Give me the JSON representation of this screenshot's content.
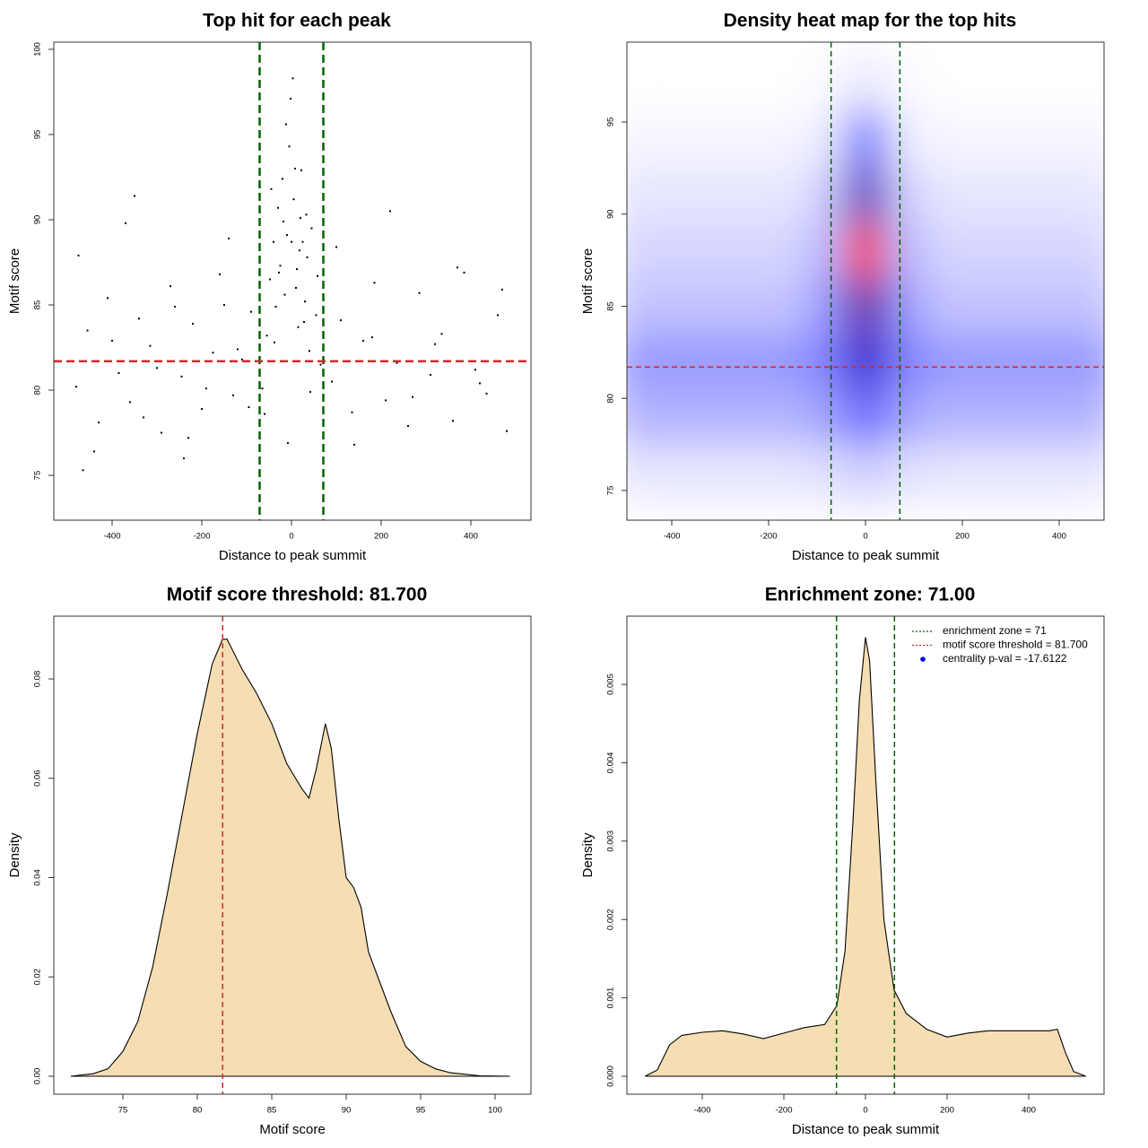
{
  "chart_data": [
    {
      "type": "scatter",
      "title": "Top hit for each peak",
      "xlabel": "Distance to peak summit",
      "ylabel": "Motif score",
      "color": "#000000",
      "x": [
        -480,
        -455,
        -430,
        -410,
        -385,
        -360,
        -340,
        -315,
        -290,
        -270,
        -245,
        -220,
        -200,
        -175,
        -150,
        -130,
        -110,
        -90,
        -475,
        -440,
        -400,
        -370,
        -330,
        -300,
        -260,
        -230,
        -190,
        -160,
        -120,
        -95,
        90,
        110,
        135,
        160,
        185,
        210,
        235,
        260,
        285,
        310,
        335,
        360,
        385,
        410,
        435,
        460,
        480,
        100,
        140,
        180,
        220,
        270,
        320,
        370,
        420,
        470,
        -465,
        -350,
        -240,
        -140,
        -65,
        -55,
        -48,
        -40,
        -35,
        -30,
        -25,
        -20,
        -15,
        -10,
        -5,
        0,
        5,
        10,
        15,
        20,
        25,
        30,
        35,
        40,
        45,
        55,
        65,
        -60,
        -45,
        -28,
        -12,
        -2,
        8,
        18,
        28,
        42,
        58,
        -38,
        -18,
        3,
        12,
        22,
        -8,
        33
      ],
      "y": [
        80.2,
        83.5,
        78.1,
        85.4,
        81.0,
        79.3,
        84.2,
        82.6,
        77.5,
        86.1,
        80.8,
        83.9,
        78.9,
        82.2,
        85.0,
        79.7,
        81.8,
        84.6,
        87.9,
        76.4,
        82.9,
        89.8,
        78.4,
        81.3,
        84.9,
        77.2,
        80.1,
        86.8,
        82.4,
        79.0,
        80.5,
        84.1,
        78.7,
        82.9,
        86.3,
        79.4,
        81.6,
        77.9,
        85.7,
        80.9,
        83.3,
        78.2,
        86.9,
        81.2,
        79.8,
        84.4,
        77.6,
        88.4,
        76.8,
        83.1,
        90.5,
        79.6,
        82.7,
        87.2,
        80.4,
        85.9,
        75.3,
        91.4,
        76.0,
        88.9,
        80.1,
        83.2,
        86.5,
        88.7,
        84.9,
        90.7,
        87.3,
        92.4,
        85.6,
        89.1,
        94.3,
        88.7,
        91.2,
        86.0,
        83.7,
        90.1,
        88.7,
        85.2,
        87.8,
        82.3,
        89.5,
        84.4,
        81.5,
        78.6,
        91.8,
        86.9,
        95.6,
        97.1,
        93.0,
        88.2,
        84.0,
        79.9,
        86.7,
        82.8,
        89.9,
        98.3,
        87.1,
        92.9,
        76.9,
        90.3
      ],
      "xlim": [
        -530,
        534
      ],
      "ylim": [
        72.37,
        100.42
      ],
      "xticks": [
        -400,
        -200,
        0,
        200,
        400
      ],
      "yticks": [
        75,
        80,
        85,
        90,
        95,
        100
      ],
      "vlines": [
        -71,
        71
      ],
      "vline_color": "#006400",
      "hlines": [
        81.7
      ],
      "hline_color": "#d62728"
    },
    {
      "type": "heatmap",
      "title": "Density heat map for the top hits",
      "xlabel": "Distance to peak summit",
      "ylabel": "Motif score",
      "x": [
        -480,
        -400,
        -320,
        -240,
        -160,
        -80,
        0,
        80,
        160,
        240,
        320,
        400,
        480
      ],
      "y": [
        97,
        94,
        91,
        88,
        85,
        82,
        79,
        76
      ],
      "z": [
        [
          0,
          0,
          0,
          0,
          0,
          0.01,
          0.05,
          0.01,
          0,
          0,
          0,
          0,
          0
        ],
        [
          0.02,
          0.02,
          0.02,
          0.02,
          0.02,
          0.04,
          0.3,
          0.04,
          0.02,
          0.02,
          0.02,
          0.02,
          0.02
        ],
        [
          0.05,
          0.05,
          0.05,
          0.05,
          0.05,
          0.1,
          0.65,
          0.1,
          0.05,
          0.05,
          0.05,
          0.05,
          0.05
        ],
        [
          0.08,
          0.08,
          0.08,
          0.08,
          0.08,
          0.15,
          1.0,
          0.15,
          0.08,
          0.08,
          0.08,
          0.08,
          0.08
        ],
        [
          0.12,
          0.12,
          0.12,
          0.12,
          0.12,
          0.2,
          0.7,
          0.2,
          0.12,
          0.12,
          0.12,
          0.12,
          0.12
        ],
        [
          0.2,
          0.2,
          0.2,
          0.2,
          0.2,
          0.25,
          0.6,
          0.25,
          0.2,
          0.2,
          0.2,
          0.2,
          0.2
        ],
        [
          0.15,
          0.15,
          0.15,
          0.15,
          0.15,
          0.18,
          0.3,
          0.18,
          0.15,
          0.15,
          0.15,
          0.15,
          0.15
        ],
        [
          0.05,
          0.05,
          0.05,
          0.05,
          0.05,
          0.06,
          0.1,
          0.06,
          0.05,
          0.05,
          0.05,
          0.05,
          0.05
        ]
      ],
      "colorscale": [
        "#ffffff",
        "#0000ff",
        "#ff0000"
      ],
      "xlim": [
        -492.6,
        492.6
      ],
      "ylim": [
        73.39,
        99.33
      ],
      "xticks": [
        -400,
        -200,
        0,
        200,
        400
      ],
      "yticks": [
        75,
        80,
        85,
        90,
        95
      ],
      "vlines": [
        -71,
        71
      ],
      "vline_color": "#006400",
      "hlines": [
        81.7
      ],
      "hline_color": "#d62728"
    },
    {
      "type": "density",
      "title": "Motif score threshold: 81.700",
      "xlabel": "Motif score",
      "ylabel": "Density",
      "color": "#f5deb3",
      "x": [
        71.5,
        73,
        74,
        75,
        76,
        77,
        78,
        79,
        80,
        81,
        81.7,
        82,
        83,
        84,
        85,
        86,
        87,
        87.5,
        88,
        88.6,
        89,
        89.5,
        90,
        90.5,
        91,
        91.5,
        93,
        94,
        95,
        96,
        97,
        99,
        101
      ],
      "y": [
        0,
        0.0005,
        0.0015,
        0.005,
        0.011,
        0.022,
        0.037,
        0.053,
        0.069,
        0.083,
        0.088,
        0.088,
        0.082,
        0.077,
        0.071,
        0.063,
        0.058,
        0.056,
        0.062,
        0.071,
        0.066,
        0.052,
        0.04,
        0.038,
        0.034,
        0.025,
        0.013,
        0.006,
        0.003,
        0.0015,
        0.0007,
        0.0001,
        0
      ],
      "xlim": [
        70.36,
        102.41
      ],
      "ylim": [
        -0.00361,
        0.09264
      ],
      "xticks": [
        75,
        80,
        85,
        90,
        95,
        100
      ],
      "yticks": [
        {
          "value": 0,
          "label": "0.00"
        },
        0.02,
        0.04,
        0.06,
        0.08
      ],
      "vlines": [
        81.7
      ],
      "vline_color": "#d62728",
      "hlines": []
    },
    {
      "type": "density",
      "title": "Enrichment zone: 71.00",
      "xlabel": "Distance to peak summit",
      "ylabel": "Density",
      "color": "#f5deb3",
      "x": [
        -540,
        -510,
        -480,
        -450,
        -400,
        -350,
        -300,
        -250,
        -200,
        -150,
        -100,
        -70,
        -50,
        -30,
        -15,
        0,
        10,
        25,
        45,
        70,
        100,
        150,
        200,
        250,
        300,
        350,
        400,
        450,
        470,
        490,
        510,
        540
      ],
      "y": [
        0,
        8e-05,
        0.0004,
        0.00052,
        0.00056,
        0.00058,
        0.00054,
        0.00048,
        0.00055,
        0.00062,
        0.00066,
        0.0009,
        0.0016,
        0.0033,
        0.0048,
        0.0056,
        0.0053,
        0.0038,
        0.002,
        0.0011,
        0.0008,
        0.0006,
        0.0005,
        0.00055,
        0.00058,
        0.00058,
        0.00058,
        0.00058,
        0.0006,
        0.0003,
        6e-05,
        0
      ],
      "xlim": [
        -584.6,
        584.6
      ],
      "ylim": [
        -0.000229,
        0.00587
      ],
      "xticks": [
        -400,
        -200,
        0,
        200,
        400
      ],
      "yticks": [
        {
          "value": 0,
          "label": "0.000"
        },
        0.001,
        0.002,
        0.003,
        0.004,
        0.005
      ],
      "vlines": [
        -71,
        71
      ],
      "vline_color": "#006400",
      "hlines": [],
      "legend": [
        {
          "label": "enrichment zone = 71",
          "color": "#006400",
          "style": "dotted"
        },
        {
          "label": "motif score threshold = 81.700",
          "color": "#d62728",
          "style": "dotted"
        },
        {
          "label": "centrality p-val = -17.6122",
          "color": "#0000ff",
          "style": "dot"
        }
      ]
    }
  ]
}
